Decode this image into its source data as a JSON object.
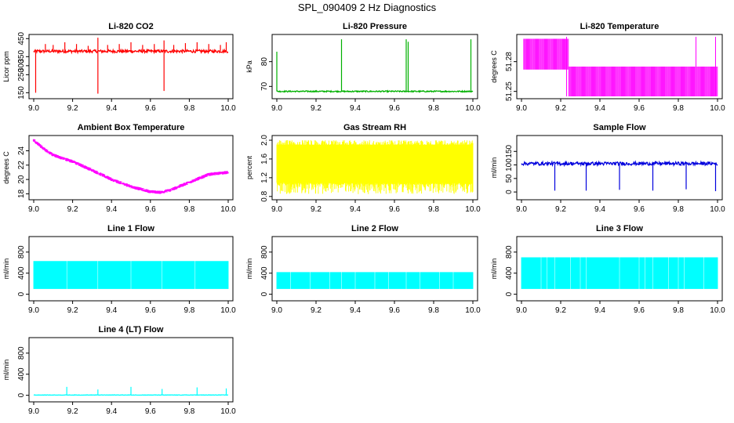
{
  "title": "SPL_090409  2 Hz Diagnostics",
  "chart_data": [
    {
      "type": "line",
      "title": "Li-820 CO2",
      "xlabel": "",
      "ylabel": "Licor ppm",
      "xlim": [
        9.0,
        10.0
      ],
      "ylim": [
        130,
        460
      ],
      "xticks": [
        9.0,
        9.2,
        9.4,
        9.6,
        9.8,
        10.0
      ],
      "xtick_labels": [
        "9.0",
        "9.2",
        "9.4",
        "9.6",
        "9.8",
        "10.0"
      ],
      "yticks": [
        150,
        250,
        300,
        350,
        450
      ],
      "ytick_labels": [
        "150",
        "250",
        "300",
        "350",
        "450"
      ],
      "color": "#ff0000",
      "series": [
        {
          "name": "CO2",
          "baseline": 380,
          "noise": 8,
          "spikes": [
            [
              9.01,
              150,
              "down"
            ],
            [
              9.06,
              420,
              "up"
            ],
            [
              9.1,
              415,
              "up"
            ],
            [
              9.16,
              430,
              "up"
            ],
            [
              9.22,
              420,
              "up"
            ],
            [
              9.28,
              410,
              "up"
            ],
            [
              9.33,
              145,
              "down"
            ],
            [
              9.33,
              455,
              "up"
            ],
            [
              9.38,
              415,
              "up"
            ],
            [
              9.44,
              420,
              "up"
            ],
            [
              9.5,
              430,
              "up"
            ],
            [
              9.56,
              415,
              "up"
            ],
            [
              9.62,
              420,
              "up"
            ],
            [
              9.67,
              160,
              "down"
            ],
            [
              9.67,
              440,
              "up"
            ],
            [
              9.72,
              415,
              "up"
            ],
            [
              9.78,
              425,
              "up"
            ],
            [
              9.84,
              430,
              "up"
            ],
            [
              9.9,
              420,
              "up"
            ],
            [
              9.96,
              415,
              "up"
            ],
            [
              9.99,
              430,
              "up"
            ]
          ]
        }
      ]
    },
    {
      "type": "line",
      "title": "Li-820 Pressure",
      "xlabel": "",
      "ylabel": "kPa",
      "xlim": [
        9.0,
        10.0
      ],
      "ylim": [
        66,
        90
      ],
      "xticks": [
        9.0,
        9.2,
        9.4,
        9.6,
        9.8,
        10.0
      ],
      "xtick_labels": [
        "9.0",
        "9.2",
        "9.4",
        "9.6",
        "9.8",
        "10.0"
      ],
      "yticks": [
        70,
        80
      ],
      "ytick_labels": [
        "70",
        "80"
      ],
      "color": "#00b000",
      "series": [
        {
          "name": "Pressure",
          "baseline": 68,
          "noise": 0.25,
          "spikes": [
            [
              9.0,
              84,
              "up"
            ],
            [
              9.33,
              89,
              "up"
            ],
            [
              9.66,
              89,
              "up"
            ],
            [
              9.67,
              88,
              "up"
            ],
            [
              9.99,
              89,
              "up"
            ]
          ]
        }
      ]
    },
    {
      "type": "line",
      "title": "Li-820 Temperature",
      "xlabel": "",
      "ylabel": "degrees C",
      "xlim": [
        9.0,
        10.0
      ],
      "ylim": [
        51.245,
        51.305
      ],
      "xticks": [
        9.0,
        9.2,
        9.4,
        9.6,
        9.8,
        10.0
      ],
      "xtick_labels": [
        "9.0",
        "9.2",
        "9.4",
        "9.6",
        "9.8",
        "10.0"
      ],
      "yticks": [
        51.25,
        51.28
      ],
      "ytick_labels": [
        "51.25",
        "51.28"
      ],
      "color": "#ff00ff",
      "series": [
        {
          "name": "Temperature",
          "segments": [
            [
              9.01,
              9.24,
              51.272,
              51.303
            ],
            [
              9.24,
              10.0,
              51.245,
              51.275
            ]
          ]
        }
      ]
    },
    {
      "type": "line",
      "title": "Ambient Box Temperature",
      "xlabel": "",
      "ylabel": "degrees C",
      "xlim": [
        9.0,
        10.0
      ],
      "ylim": [
        17.5,
        25.8
      ],
      "xticks": [
        9.0,
        9.2,
        9.4,
        9.6,
        9.8,
        10.0
      ],
      "xtick_labels": [
        "9.0",
        "9.2",
        "9.4",
        "9.6",
        "9.8",
        "10.0"
      ],
      "yticks": [
        18,
        20,
        22,
        24
      ],
      "ytick_labels": [
        "18",
        "20",
        "22",
        "24"
      ],
      "color": "#ff00ff",
      "series": [
        {
          "name": "Ambient",
          "x": [
            9.0,
            9.05,
            9.1,
            9.2,
            9.3,
            9.4,
            9.5,
            9.6,
            9.65,
            9.7,
            9.8,
            9.9,
            10.0
          ],
          "y": [
            25.5,
            24.3,
            23.4,
            22.5,
            21.3,
            20.0,
            19.0,
            18.3,
            18.2,
            18.5,
            19.6,
            20.7,
            21.0
          ],
          "noise": 0.45
        }
      ]
    },
    {
      "type": "line",
      "title": "Gas Stream RH",
      "xlabel": "",
      "ylabel": "percent",
      "xlim": [
        9.0,
        10.0
      ],
      "ylim": [
        0.78,
        2.05
      ],
      "xticks": [
        9.0,
        9.2,
        9.4,
        9.6,
        9.8,
        10.0
      ],
      "xtick_labels": [
        "9.0",
        "9.2",
        "9.4",
        "9.6",
        "9.8",
        "10.0"
      ],
      "yticks": [
        0.8,
        1.2,
        1.6,
        2.0
      ],
      "ytick_labels": [
        "0.8",
        "1.2",
        "1.6",
        "2.0"
      ],
      "color": "#ffff00",
      "series": [
        {
          "name": "RH",
          "band": [
            1.1,
            1.9
          ],
          "extremes": [
            0.85,
            2.0
          ]
        }
      ]
    },
    {
      "type": "line",
      "title": "Sample Flow",
      "xlabel": "",
      "ylabel": "ml/min",
      "xlim": [
        9.0,
        10.0
      ],
      "ylim": [
        -20,
        200
      ],
      "xticks": [
        9.0,
        9.2,
        9.4,
        9.6,
        9.8,
        10.0
      ],
      "xtick_labels": [
        "9.0",
        "9.2",
        "9.4",
        "9.6",
        "9.8",
        "10.0"
      ],
      "yticks": [
        0,
        50,
        100,
        150
      ],
      "ytick_labels": [
        "0",
        "50",
        "100",
        "150"
      ],
      "color": "#0000dd",
      "series": [
        {
          "name": "Sample",
          "baseline": 105,
          "noise": 6,
          "spikes": [
            [
              9.17,
              5,
              "down"
            ],
            [
              9.33,
              5,
              "down"
            ],
            [
              9.5,
              8,
              "down"
            ],
            [
              9.67,
              5,
              "down"
            ],
            [
              9.84,
              10,
              "down"
            ],
            [
              9.99,
              3,
              "down"
            ]
          ]
        }
      ]
    },
    {
      "type": "line",
      "title": "Line 1 Flow",
      "xlabel": "",
      "ylabel": "ml/min",
      "xlim": [
        9.0,
        10.0
      ],
      "ylim": [
        -80,
        1050
      ],
      "xticks": [
        9.0,
        9.2,
        9.4,
        9.6,
        9.8,
        10.0
      ],
      "xtick_labels": [
        "9.0",
        "9.2",
        "9.4",
        "9.6",
        "9.8",
        "10.0"
      ],
      "yticks": [
        0,
        400,
        800
      ],
      "ytick_labels": [
        "0",
        "400",
        "800"
      ],
      "color": "#00ffff",
      "series": [
        {
          "name": "Line1",
          "band": [
            100,
            630
          ],
          "gaps": [
            9.17,
            9.33,
            9.5,
            9.66,
            9.83
          ]
        }
      ]
    },
    {
      "type": "line",
      "title": "Line 2 Flow",
      "xlabel": "",
      "ylabel": "ml/min",
      "xlim": [
        9.0,
        10.0
      ],
      "ylim": [
        -80,
        1050
      ],
      "xticks": [
        9.0,
        9.2,
        9.4,
        9.6,
        9.8,
        10.0
      ],
      "xtick_labels": [
        "9.0",
        "9.2",
        "9.4",
        "9.6",
        "9.8",
        "10.0"
      ],
      "yticks": [
        0,
        400,
        800
      ],
      "ytick_labels": [
        "0",
        "400",
        "800"
      ],
      "color": "#00ffff",
      "series": [
        {
          "name": "Line2",
          "band": [
            100,
            420
          ],
          "gaps": [
            9.07,
            9.17,
            9.27,
            9.33,
            9.4,
            9.5,
            9.57,
            9.66,
            9.73,
            9.83,
            9.9
          ]
        }
      ]
    },
    {
      "type": "line",
      "title": "Line 3 Flow",
      "xlabel": "",
      "ylabel": "ml/min",
      "xlim": [
        9.0,
        10.0
      ],
      "ylim": [
        -80,
        1050
      ],
      "xticks": [
        9.0,
        9.2,
        9.4,
        9.6,
        9.8,
        10.0
      ],
      "xtick_labels": [
        "9.0",
        "9.2",
        "9.4",
        "9.6",
        "9.8",
        "10.0"
      ],
      "yticks": [
        0,
        400,
        800
      ],
      "ytick_labels": [
        "0",
        "400",
        "800"
      ],
      "color": "#00ffff",
      "series": [
        {
          "name": "Line3",
          "band": [
            100,
            700
          ],
          "gaps": [
            9.1,
            9.13,
            9.17,
            9.25,
            9.3,
            9.33,
            9.5,
            9.6,
            9.63,
            9.67,
            9.75,
            9.8,
            9.83,
            9.93
          ]
        }
      ]
    },
    {
      "type": "line",
      "title": "Line 4 (LT) Flow",
      "xlabel": "",
      "ylabel": "ml/min",
      "xlim": [
        9.0,
        10.0
      ],
      "ylim": [
        -80,
        1050
      ],
      "xticks": [
        9.0,
        9.2,
        9.4,
        9.6,
        9.8,
        10.0
      ],
      "xtick_labels": [
        "9.0",
        "9.2",
        "9.4",
        "9.6",
        "9.8",
        "10.0"
      ],
      "yticks": [
        0,
        400,
        800
      ],
      "ytick_labels": [
        "0",
        "400",
        "800"
      ],
      "color": "#00ffff",
      "series": [
        {
          "name": "Line4",
          "baseline": 5,
          "noise": 4,
          "spikes": [
            [
              9.17,
              160,
              "up"
            ],
            [
              9.33,
              110,
              "up"
            ],
            [
              9.5,
              160,
              "up"
            ],
            [
              9.66,
              120,
              "up"
            ],
            [
              9.84,
              150,
              "up"
            ],
            [
              9.99,
              130,
              "up"
            ]
          ]
        }
      ]
    }
  ]
}
